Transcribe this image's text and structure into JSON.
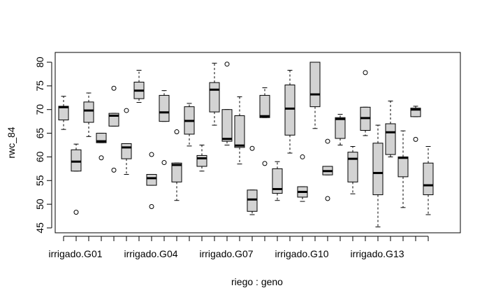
{
  "chart_data": {
    "type": "boxplot",
    "xlabel": "riego : geno",
    "ylabel": "rwc_84",
    "ylim": [
      45,
      80
    ],
    "yticks": [
      45,
      50,
      55,
      60,
      65,
      70,
      75,
      80
    ],
    "box_fill": "#d3d3d3",
    "grid": false,
    "x_tick_labels": [
      {
        "index": 0,
        "label": "irrigado.G01"
      },
      {
        "index": 6,
        "label": "irrigado.G04"
      },
      {
        "index": 12,
        "label": "irrigado.G07"
      },
      {
        "index": 18,
        "label": "irrigado.G10"
      },
      {
        "index": 24,
        "label": "irrigado.G13"
      }
    ],
    "boxes": [
      {
        "min": 65.8,
        "q1": 67.8,
        "median": 70.5,
        "q3": 70.7,
        "max": 72.8,
        "outliers": []
      },
      {
        "min": 57.0,
        "q1": 57.0,
        "median": 59.0,
        "q3": 61.5,
        "max": 62.7,
        "outliers": [
          48.3
        ]
      },
      {
        "min": 64.3,
        "q1": 67.3,
        "median": 69.8,
        "q3": 71.6,
        "max": 73.5,
        "outliers": []
      },
      {
        "min": 63.0,
        "q1": 63.0,
        "median": 63.3,
        "q3": 65.0,
        "max": 65.0,
        "outliers": [
          59.8
        ]
      },
      {
        "min": 66.5,
        "q1": 66.5,
        "median": 68.7,
        "q3": 69.2,
        "max": 69.2,
        "outliers": [
          74.5,
          57.2
        ]
      },
      {
        "min": 56.3,
        "q1": 59.6,
        "median": 62.0,
        "q3": 62.8,
        "max": 62.8,
        "outliers": [
          69.8
        ]
      },
      {
        "min": 71.5,
        "q1": 72.3,
        "median": 74.0,
        "q3": 75.8,
        "max": 78.3,
        "outliers": []
      },
      {
        "min": 54.0,
        "q1": 54.0,
        "median": 55.5,
        "q3": 56.3,
        "max": 56.3,
        "outliers": [
          60.5,
          49.5
        ]
      },
      {
        "min": 67.5,
        "q1": 67.5,
        "median": 69.4,
        "q3": 73.0,
        "max": 74.0,
        "outliers": [
          58.8
        ]
      },
      {
        "min": 50.8,
        "q1": 54.7,
        "median": 58.3,
        "q3": 58.7,
        "max": 58.7,
        "outliers": [
          65.3
        ]
      },
      {
        "min": 62.3,
        "q1": 64.8,
        "median": 67.6,
        "q3": 70.6,
        "max": 71.3,
        "outliers": []
      },
      {
        "min": 57.0,
        "q1": 58.0,
        "median": 59.7,
        "q3": 60.3,
        "max": 62.5,
        "outliers": []
      },
      {
        "min": 66.7,
        "q1": 69.5,
        "median": 74.2,
        "q3": 75.7,
        "max": 79.8,
        "outliers": []
      },
      {
        "min": 62.5,
        "q1": 63.3,
        "median": 63.8,
        "q3": 70.0,
        "max": 70.0,
        "outliers": [
          79.6
        ]
      },
      {
        "min": 58.5,
        "q1": 62.0,
        "median": 62.4,
        "q3": 68.7,
        "max": 72.7,
        "outliers": []
      },
      {
        "min": 47.8,
        "q1": 48.5,
        "median": 51.0,
        "q3": 53.0,
        "max": 53.0,
        "outliers": [
          61.8
        ]
      },
      {
        "min": 68.3,
        "q1": 68.3,
        "median": 68.6,
        "q3": 73.0,
        "max": 74.6,
        "outliers": [
          58.6
        ]
      },
      {
        "min": 50.8,
        "q1": 52.3,
        "median": 53.2,
        "q3": 57.5,
        "max": 59.0,
        "outliers": []
      },
      {
        "min": 60.8,
        "q1": 64.6,
        "median": 70.2,
        "q3": 75.2,
        "max": 78.3,
        "outliers": []
      },
      {
        "min": 50.6,
        "q1": 51.5,
        "median": 52.6,
        "q3": 53.7,
        "max": 53.7,
        "outliers": [
          60.0
        ]
      },
      {
        "min": 66.0,
        "q1": 70.6,
        "median": 73.2,
        "q3": 80.0,
        "max": 80.0,
        "outliers": []
      },
      {
        "min": 56.2,
        "q1": 56.2,
        "median": 57.0,
        "q3": 58.0,
        "max": 58.0,
        "outliers": [
          63.3,
          51.2
        ]
      },
      {
        "min": 62.5,
        "q1": 63.9,
        "median": 68.0,
        "q3": 68.3,
        "max": 69.0,
        "outliers": []
      },
      {
        "min": 52.2,
        "q1": 54.7,
        "median": 59.6,
        "q3": 61.0,
        "max": 62.2,
        "outliers": []
      },
      {
        "min": 64.5,
        "q1": 65.6,
        "median": 68.2,
        "q3": 70.5,
        "max": 70.5,
        "outliers": [
          77.8
        ]
      },
      {
        "min": 45.2,
        "q1": 52.0,
        "median": 56.6,
        "q3": 62.9,
        "max": 66.7,
        "outliers": []
      },
      {
        "min": 60.0,
        "q1": 60.5,
        "median": 65.2,
        "q3": 67.0,
        "max": 71.8,
        "outliers": []
      },
      {
        "min": 49.3,
        "q1": 55.8,
        "median": 59.8,
        "q3": 60.0,
        "max": 65.5,
        "outliers": []
      },
      {
        "min": 68.5,
        "q1": 68.5,
        "median": 70.0,
        "q3": 70.3,
        "max": 70.7,
        "outliers": [
          63.7
        ]
      },
      {
        "min": 47.8,
        "q1": 52.0,
        "median": 54.0,
        "q3": 58.7,
        "max": 62.2,
        "outliers": []
      }
    ]
  }
}
